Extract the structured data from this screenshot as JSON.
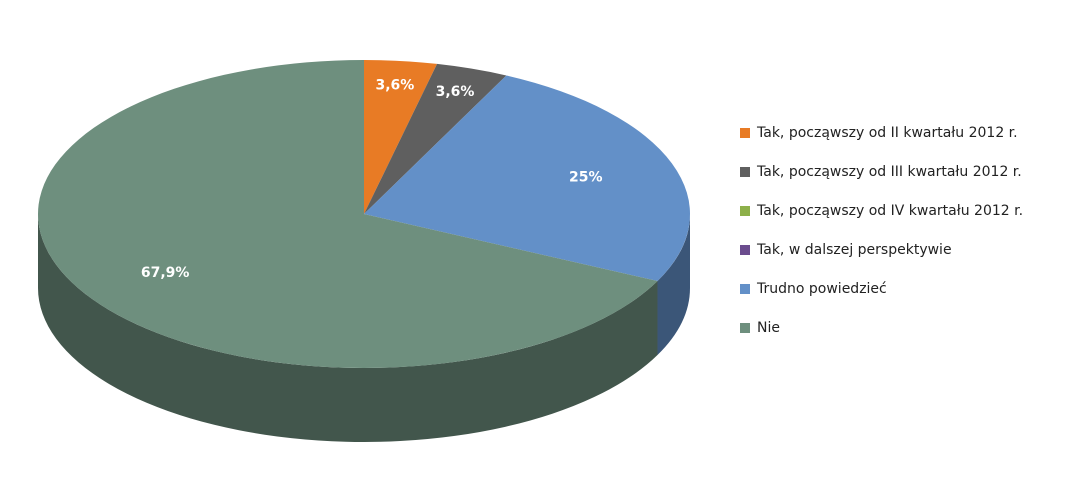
{
  "chart_data": {
    "type": "pie3d",
    "categories": [
      "Tak, począwszy od II kwartału 2012 r.",
      "Tak, począwszy od III kwartału 2012 r.",
      "Tak, począwszy od IV kwartału 2012 r.",
      "Tak, w dalszej perspektywie",
      "Trudno powiedzieć",
      "Nie"
    ],
    "values": [
      3.6,
      3.6,
      0,
      0,
      25,
      67.9
    ],
    "value_labels": [
      "3,6%",
      "3,6%",
      null,
      null,
      "25%",
      "67,9%"
    ],
    "colors": [
      "#e87b25",
      "#5f5f5f",
      "#8db04a",
      "#6b4c8e",
      "#6390c8",
      "#6e8f7e"
    ],
    "legend": "right"
  }
}
